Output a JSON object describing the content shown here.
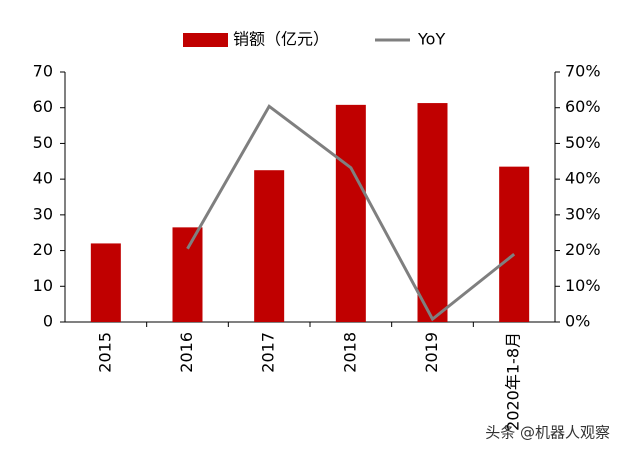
{
  "chart_data": {
    "type": "bar",
    "categories": [
      "2015",
      "2016",
      "2017",
      "2018",
      "2019",
      "2020年1-8月"
    ],
    "series": [
      {
        "name": "销额（亿元）",
        "type": "bar",
        "color": "#c00000",
        "values": [
          22,
          26.5,
          42.5,
          60.8,
          61.3,
          43.5
        ]
      },
      {
        "name": "YoY",
        "type": "line",
        "axis": "y2",
        "color": "#7f7f7f",
        "values": [
          null,
          20.5,
          60.4,
          43.2,
          0.8,
          19
        ]
      }
    ],
    "ylim": [
      0,
      70
    ],
    "yticks": [
      0,
      10,
      20,
      30,
      40,
      50,
      60,
      70
    ],
    "y2lim": [
      0,
      70
    ],
    "y2ticks": [
      {
        "value": 0,
        "label": "0%"
      },
      {
        "value": 10,
        "label": "10%"
      },
      {
        "value": 20,
        "label": "20%"
      },
      {
        "value": 30,
        "label": "30%"
      },
      {
        "value": 40,
        "label": "40%"
      },
      {
        "value": 50,
        "label": "50%"
      },
      {
        "value": 60,
        "label": "60%"
      },
      {
        "value": 70,
        "label": "70%"
      }
    ],
    "legend": "top",
    "watermark": "头条 @机器人观察"
  }
}
